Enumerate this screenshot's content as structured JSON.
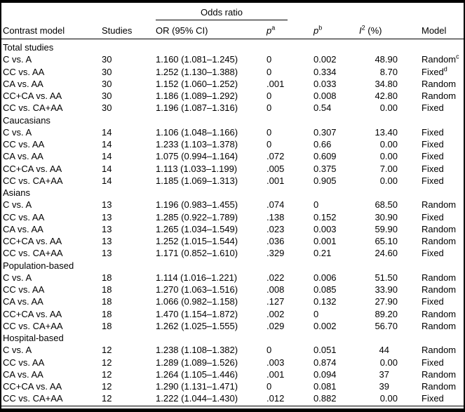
{
  "table": {
    "spanner_label": "Odds ratio",
    "columns": {
      "contrast": "Contrast model",
      "studies": "Studies",
      "or_ci": "OR (95% CI)",
      "p_a": {
        "base": "p",
        "sup": "a"
      },
      "p_b": {
        "base": "p",
        "sup": "b"
      },
      "i2": {
        "base": "I",
        "sup": "2",
        "rest": " (%)"
      },
      "model": "Model"
    },
    "groups": [
      {
        "label": "Total studies",
        "rows": [
          {
            "contrast": "C vs. A",
            "studies": "30",
            "or_ci": "1.160 (1.081–1.245)",
            "p_a": "0",
            "p_b": "0.002",
            "i2": "48.90",
            "model": "Random",
            "model_sup": "c"
          },
          {
            "contrast": "CC vs. AA",
            "studies": "30",
            "or_ci": "1.252 (1.130–1.388)",
            "p_a": "0",
            "p_b": "0.334",
            "i2": "8.70",
            "model": "Fixed",
            "model_sup": "d"
          },
          {
            "contrast": "CA vs. AA",
            "studies": "30",
            "or_ci": "1.152 (1.060–1.252)",
            "p_a": ".001",
            "p_b": "0.033",
            "i2": "34.80",
            "model": "Random"
          },
          {
            "contrast": "CC+CA vs. AA",
            "studies": "30",
            "or_ci": "1.186 (1.089–1.292)",
            "p_a": "0",
            "p_b": "0.008",
            "i2": "42.80",
            "model": "Random"
          },
          {
            "contrast": "CC vs. CA+AA",
            "studies": "30",
            "or_ci": "1.196 (1.087–1.316)",
            "p_a": "0",
            "p_b": "0.54",
            "i2": "0.00",
            "model": "Fixed"
          }
        ]
      },
      {
        "label": "Caucasians",
        "rows": [
          {
            "contrast": "C vs. A",
            "studies": "14",
            "or_ci": "1.106 (1.048–1.166)",
            "p_a": "0",
            "p_b": "0.307",
            "i2": "13.40",
            "model": "Fixed"
          },
          {
            "contrast": "CC vs. AA",
            "studies": "14",
            "or_ci": "1.233 (1.103–1.378)",
            "p_a": "0",
            "p_b": "0.66",
            "i2": "0.00",
            "model": "Fixed"
          },
          {
            "contrast": "CA vs. AA",
            "studies": "14",
            "or_ci": "1.075 (0.994–1.164)",
            "p_a": ".072",
            "p_b": "0.609",
            "i2": "0.00",
            "model": "Fixed"
          },
          {
            "contrast": "CC+CA vs. AA",
            "studies": "14",
            "or_ci": "1.113 (1.033–1.199)",
            "p_a": ".005",
            "p_b": "0.375",
            "i2": "7.00",
            "model": "Fixed"
          },
          {
            "contrast": "CC vs. CA+AA",
            "studies": "14",
            "or_ci": "1.185 (1.069–1.313)",
            "p_a": ".001",
            "p_b": "0.905",
            "i2": "0.00",
            "model": "Fixed"
          }
        ]
      },
      {
        "label": "Asians",
        "rows": [
          {
            "contrast": "C vs. A",
            "studies": "13",
            "or_ci": "1.196 (0.983–1.455)",
            "p_a": ".074",
            "p_b": "0",
            "i2": "68.50",
            "model": "Random"
          },
          {
            "contrast": "CC vs. AA",
            "studies": "13",
            "or_ci": "1.285 (0.922–1.789)",
            "p_a": ".138",
            "p_b": "0.152",
            "i2": "30.90",
            "model": "Fixed"
          },
          {
            "contrast": "CA vs. AA",
            "studies": "13",
            "or_ci": "1.265 (1.034–1.549)",
            "p_a": ".023",
            "p_b": "0.003",
            "i2": "59.90",
            "model": "Random"
          },
          {
            "contrast": "CC+CA vs. AA",
            "studies": "13",
            "or_ci": "1.252 (1.015–1.544)",
            "p_a": ".036",
            "p_b": "0.001",
            "i2": "65.10",
            "model": "Random"
          },
          {
            "contrast": "CC vs. CA+AA",
            "studies": "13",
            "or_ci": "1.171 (0.852–1.610)",
            "p_a": ".329",
            "p_b": "0.21",
            "i2": "24.60",
            "model": "Fixed"
          }
        ]
      },
      {
        "label": "Population-based",
        "rows": [
          {
            "contrast": "C vs. A",
            "studies": "18",
            "or_ci": "1.114 (1.016–1.221)",
            "p_a": ".022",
            "p_b": "0.006",
            "i2": "51.50",
            "model": "Random"
          },
          {
            "contrast": "CC vs. AA",
            "studies": "18",
            "or_ci": "1.270 (1.063–1.516)",
            "p_a": ".008",
            "p_b": "0.085",
            "i2": "33.90",
            "model": "Random"
          },
          {
            "contrast": "CA vs. AA",
            "studies": "18",
            "or_ci": "1.066 (0.982–1.158)",
            "p_a": ".127",
            "p_b": "0.132",
            "i2": "27.90",
            "model": "Fixed"
          },
          {
            "contrast": "CC+CA vs. AA",
            "studies": "18",
            "or_ci": "1.470 (1.154–1.872)",
            "p_a": ".002",
            "p_b": "0",
            "i2": "89.20",
            "model": "Random"
          },
          {
            "contrast": "CC vs. CA+AA",
            "studies": "18",
            "or_ci": "1.262 (1.025–1.555)",
            "p_a": ".029",
            "p_b": "0.002",
            "i2": "56.70",
            "model": "Random"
          }
        ]
      },
      {
        "label": "Hospital-based",
        "rows": [
          {
            "contrast": "C vs. A",
            "studies": "12",
            "or_ci": "1.238 (1.108–1.382)",
            "p_a": "0",
            "p_b": "0.051",
            "i2": "44",
            "model": "Random"
          },
          {
            "contrast": "CC vs. AA",
            "studies": "12",
            "or_ci": "1.289 (1.089–1.526)",
            "p_a": ".003",
            "p_b": "0.874",
            "i2": "0.00",
            "model": "Fixed"
          },
          {
            "contrast": "CA vs. AA",
            "studies": "12",
            "or_ci": "1.264 (1.105–1.446)",
            "p_a": ".001",
            "p_b": "0.094",
            "i2": "37",
            "model": "Random"
          },
          {
            "contrast": "CC+CA vs. AA",
            "studies": "12",
            "or_ci": "1.290 (1.131–1.471)",
            "p_a": "0",
            "p_b": "0.081",
            "i2": "39",
            "model": "Random"
          },
          {
            "contrast": "CC vs. CA+AA",
            "studies": "12",
            "or_ci": "1.222 (1.044–1.430)",
            "p_a": ".012",
            "p_b": "0.882",
            "i2": "0.00",
            "model": "Fixed"
          }
        ]
      }
    ],
    "colors": {
      "text": "#000000",
      "background": "#ffffff",
      "rule": "#000000"
    }
  }
}
